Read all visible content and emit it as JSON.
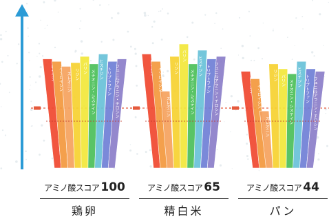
{
  "colors": {
    "arrow": "#2b9bd6",
    "threshold_line": "#e55a3c",
    "background_noise": "#e6ecef",
    "staves": [
      "#f0482f",
      "#f4993d",
      "#f6a25e",
      "#f7d230",
      "#f2e83a",
      "#4cbf5a",
      "#69c2d8",
      "#6f7fd6",
      "#8b7ec9",
      "#5aa0d8",
      "#59b26a"
    ]
  },
  "barrels": [
    {
      "score_label": "アミノ酸スコア",
      "score_value": "100",
      "food_name": "鶏卵",
      "stave_levels": [
        0.88,
        0.86,
        0.82,
        0.85,
        0.9,
        0.84,
        0.92,
        0.86,
        0.88
      ],
      "stave_texts": [
        "ロイシン",
        "イソロイシン",
        "スレオニン",
        "リジン",
        "バリン",
        "メチオニン・システイン",
        "ヒスチジン",
        "トリプトファン",
        "フェニルアラニン・チロシン"
      ]
    },
    {
      "score_label": "アミノ酸スコア",
      "score_value": "65",
      "food_name": "精白米",
      "stave_levels": [
        0.92,
        0.86,
        0.62,
        0.9,
        1.0,
        0.84,
        0.95,
        0.88,
        0.9
      ],
      "stave_texts": [
        "ロイシン",
        "イソロイシン",
        "スレオニン",
        "リジン",
        "バリン",
        "メチオニン・システイン",
        "ヒスチジン",
        "トリプトファン",
        "フェニルアラニン・チロシン"
      ]
    },
    {
      "score_label": "アミノ酸スコア",
      "score_value": "44",
      "food_name": "パン",
      "stave_levels": [
        0.78,
        0.72,
        0.46,
        0.84,
        0.8,
        0.76,
        0.86,
        0.8,
        0.78
      ],
      "stave_texts": [
        "ロイシン",
        "イソロイシン",
        "スレオニン",
        "リジン",
        "バリン",
        "メチオニン・システイン",
        "ヒスチジン",
        "トリプトファン",
        "フェニルアラニン・チロシン"
      ]
    }
  ]
}
